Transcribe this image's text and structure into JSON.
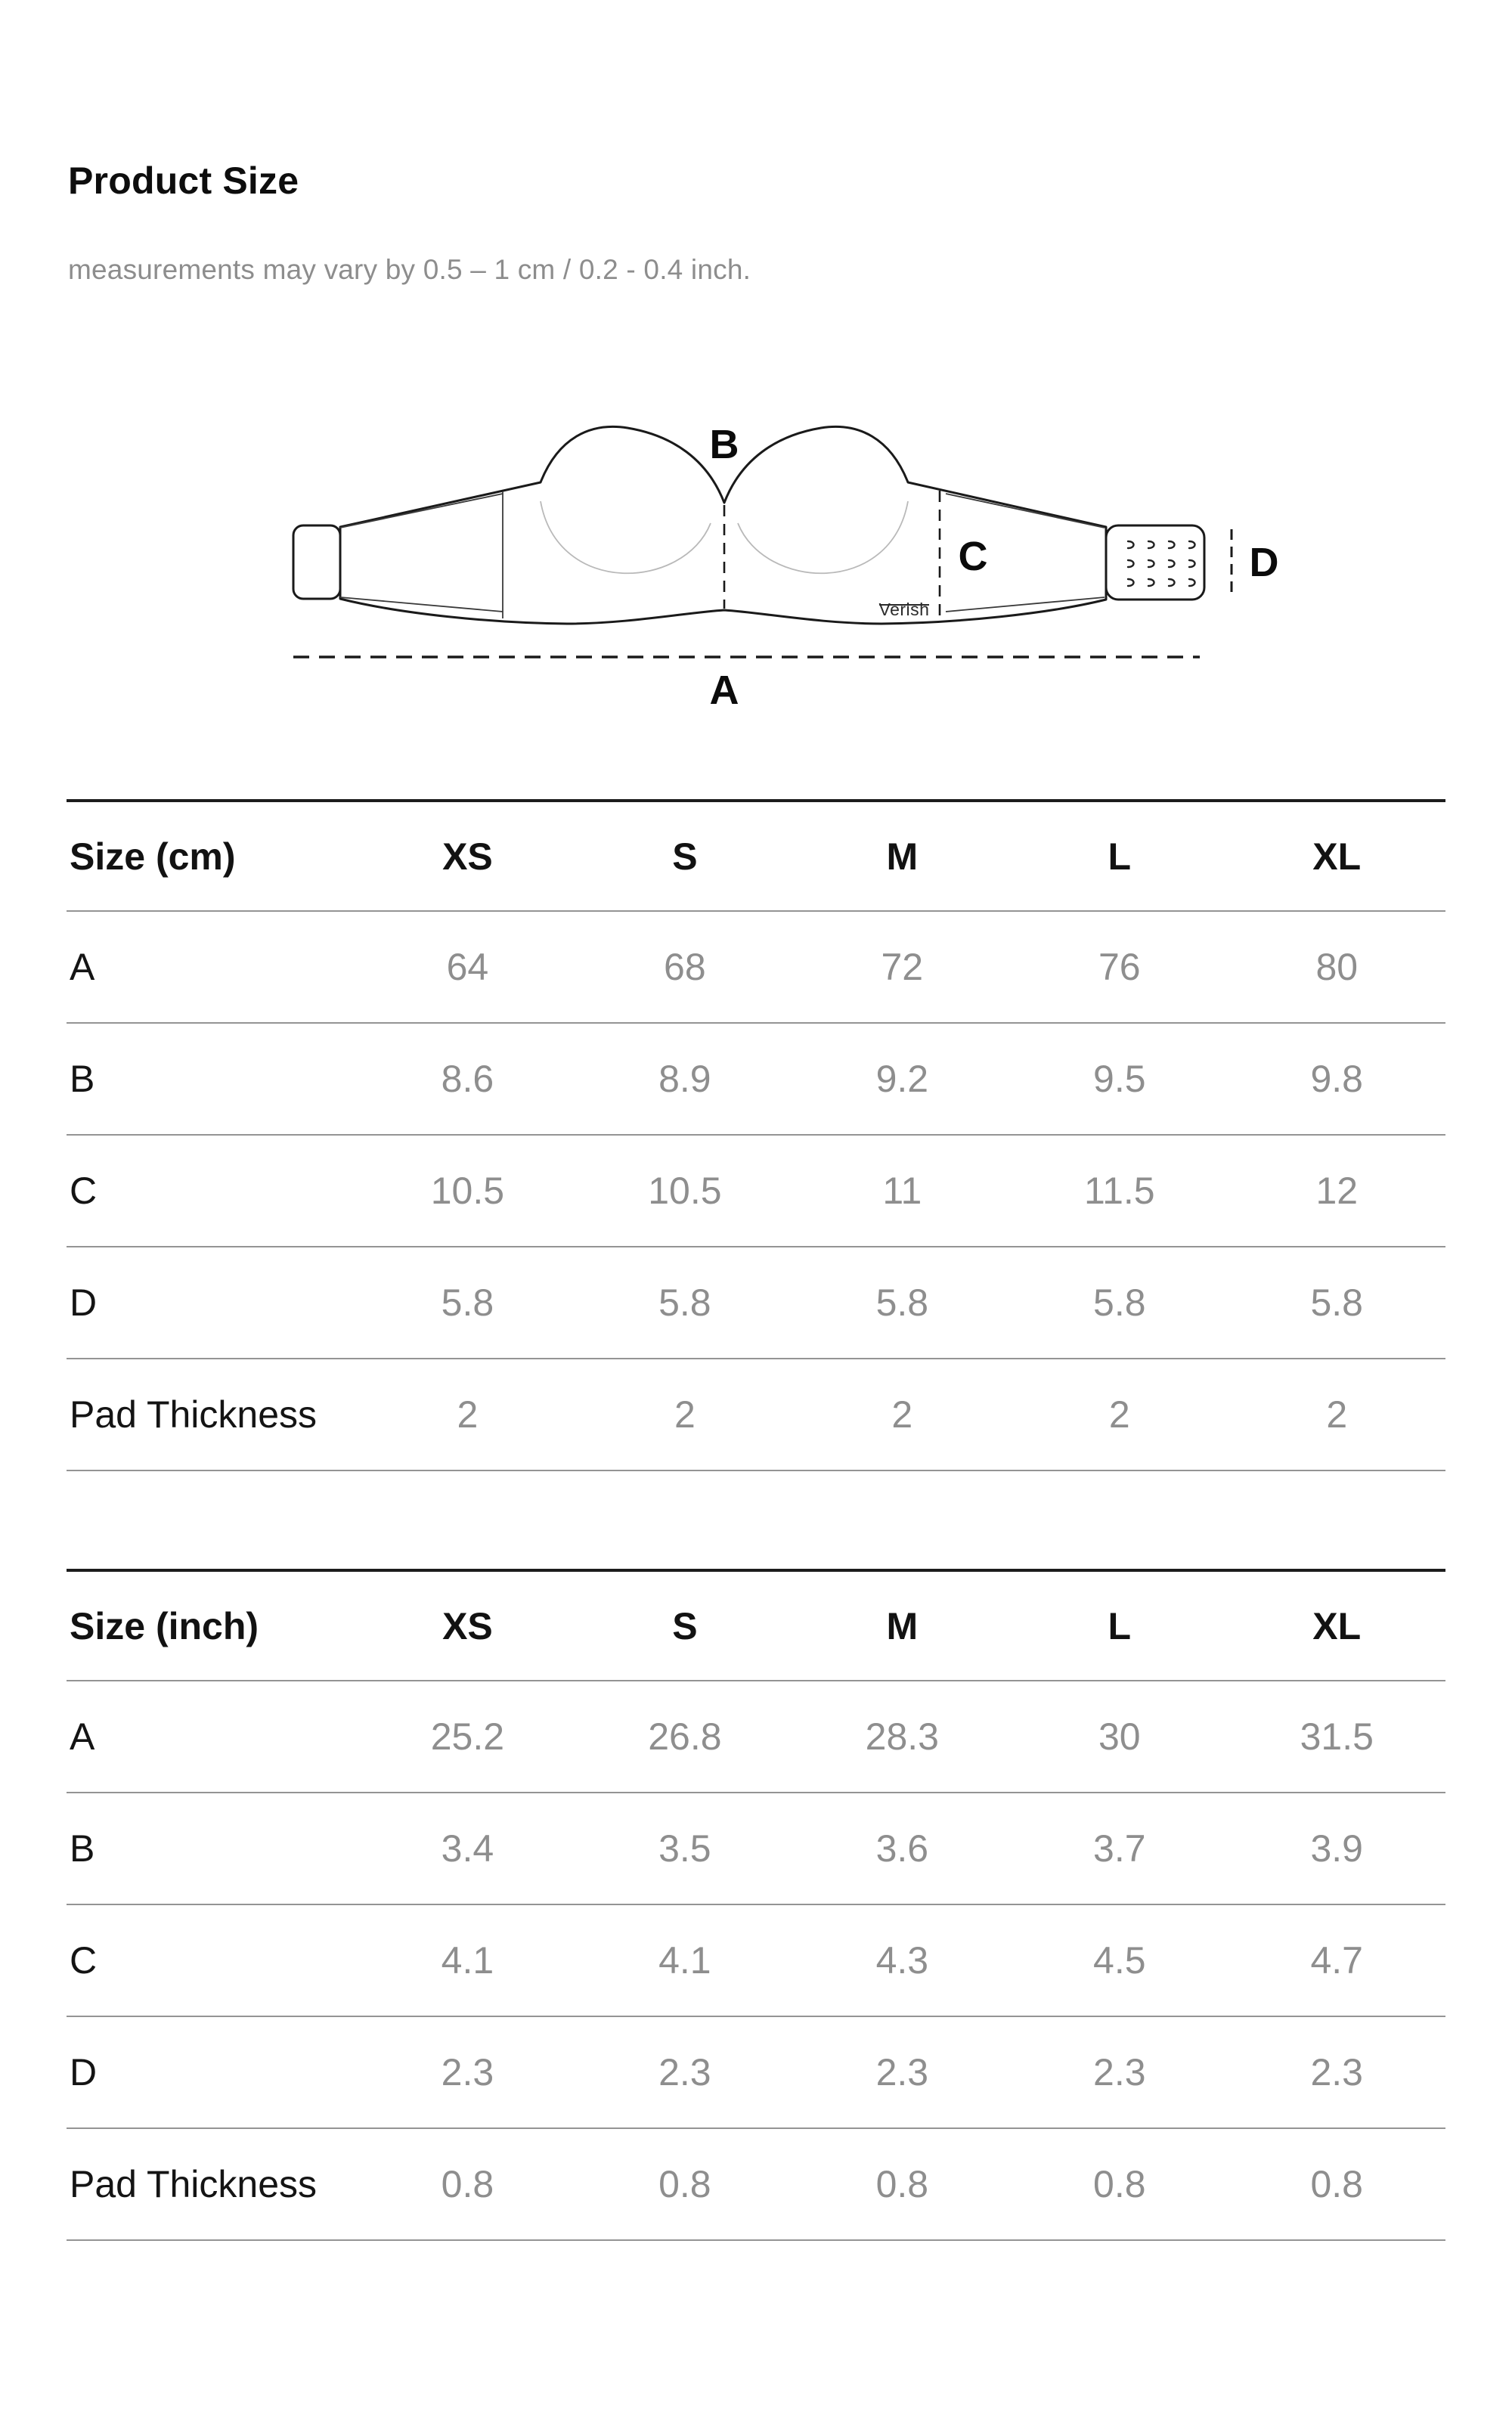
{
  "page": {
    "title": "Product Size",
    "subtitle": "measurements may vary by 0.5 – 1 cm / 0.2 - 0.4 inch."
  },
  "diagram": {
    "brand": "Verish",
    "labels": {
      "a": "A",
      "b": "B",
      "c": "C",
      "d": "D"
    }
  },
  "tables": [
    {
      "id": "cm",
      "header": [
        "Size (cm)",
        "XS",
        "S",
        "M",
        "L",
        "XL"
      ],
      "rows": [
        {
          "label": "A",
          "values": [
            "64",
            "68",
            "72",
            "76",
            "80"
          ]
        },
        {
          "label": "B",
          "values": [
            "8.6",
            "8.9",
            "9.2",
            "9.5",
            "9.8"
          ]
        },
        {
          "label": "C",
          "values": [
            "10.5",
            "10.5",
            "11",
            "11.5",
            "12"
          ]
        },
        {
          "label": "D",
          "values": [
            "5.8",
            "5.8",
            "5.8",
            "5.8",
            "5.8"
          ]
        },
        {
          "label": "Pad Thickness",
          "values": [
            "2",
            "2",
            "2",
            "2",
            "2"
          ]
        }
      ]
    },
    {
      "id": "inch",
      "header": [
        "Size (inch)",
        "XS",
        "S",
        "M",
        "L",
        "XL"
      ],
      "rows": [
        {
          "label": "A",
          "values": [
            "25.2",
            "26.8",
            "28.3",
            "30",
            "31.5"
          ]
        },
        {
          "label": "B",
          "values": [
            "3.4",
            "3.5",
            "3.6",
            "3.7",
            "3.9"
          ]
        },
        {
          "label": "C",
          "values": [
            "4.1",
            "4.1",
            "4.3",
            "4.5",
            "4.7"
          ]
        },
        {
          "label": "D",
          "values": [
            "2.3",
            "2.3",
            "2.3",
            "2.3",
            "2.3"
          ]
        },
        {
          "label": "Pad Thickness",
          "values": [
            "0.8",
            "0.8",
            "0.8",
            "0.8",
            "0.8"
          ]
        }
      ]
    }
  ],
  "colors": {
    "text": "#111111",
    "muted": "#8d8d8d",
    "line_strong": "#1c1c1c",
    "line_soft": "#949494"
  }
}
